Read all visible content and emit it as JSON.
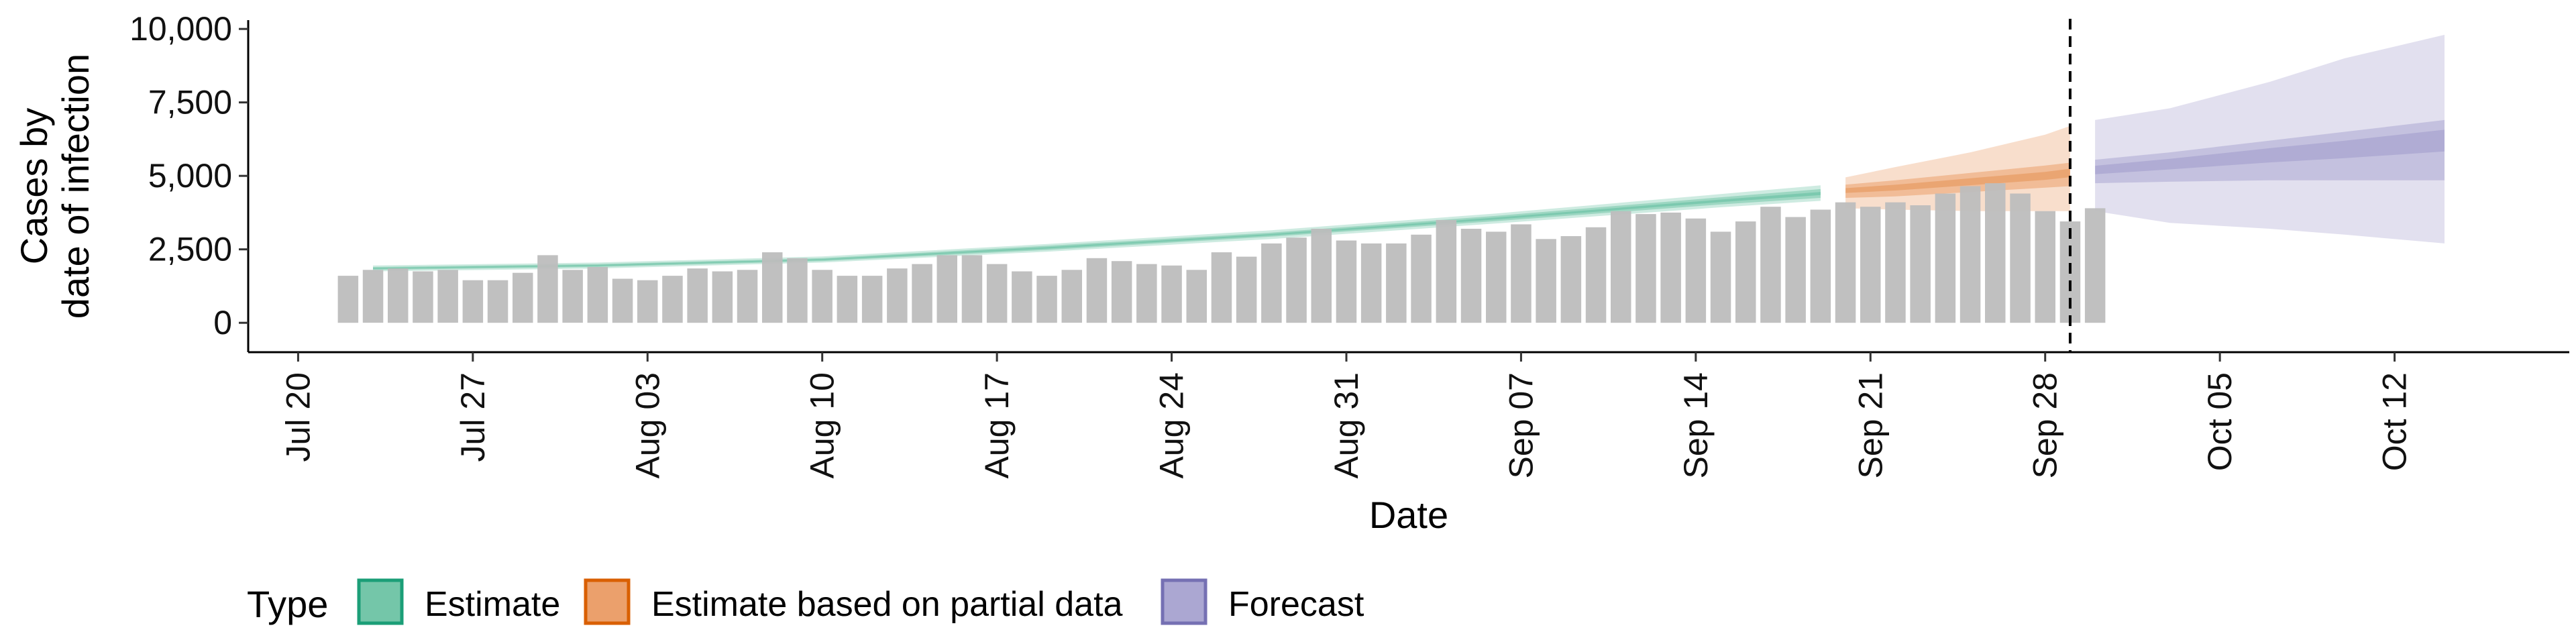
{
  "chart_data": {
    "type": "area",
    "xlabel": "Date",
    "ylabel": [
      "Cases by",
      "date of infection"
    ],
    "x_range": [
      "2020-07-18",
      "2020-10-19"
    ],
    "ylim": [
      -1000,
      10300
    ],
    "y_ticks": [
      {
        "value": 0,
        "label": "0"
      },
      {
        "value": 2500,
        "label": "2,500"
      },
      {
        "value": 5000,
        "label": "5,000"
      },
      {
        "value": 7500,
        "label": "7,500"
      },
      {
        "value": 10000,
        "label": "10,000"
      }
    ],
    "x_ticks": [
      {
        "date": "2020-07-20",
        "label": "Jul 20"
      },
      {
        "date": "2020-07-27",
        "label": "Jul 27"
      },
      {
        "date": "2020-08-03",
        "label": "Aug 03"
      },
      {
        "date": "2020-08-10",
        "label": "Aug 10"
      },
      {
        "date": "2020-08-17",
        "label": "Aug 17"
      },
      {
        "date": "2020-08-24",
        "label": "Aug 24"
      },
      {
        "date": "2020-08-31",
        "label": "Aug 31"
      },
      {
        "date": "2020-09-07",
        "label": "Sep 07"
      },
      {
        "date": "2020-09-14",
        "label": "Sep 14"
      },
      {
        "date": "2020-09-21",
        "label": "Sep 21"
      },
      {
        "date": "2020-09-28",
        "label": "Sep 28"
      },
      {
        "date": "2020-10-05",
        "label": "Oct 05"
      },
      {
        "date": "2020-10-12",
        "label": "Oct 12"
      }
    ],
    "vline_date": "2020-09-29",
    "bars": {
      "start_date": "2020-07-22",
      "color": "#bdbdbd",
      "values": [
        1600,
        1800,
        1850,
        1750,
        1800,
        1450,
        1450,
        1700,
        2300,
        1800,
        1900,
        1500,
        1450,
        1600,
        1850,
        1750,
        1800,
        2400,
        2200,
        1800,
        1600,
        1600,
        1850,
        2000,
        2300,
        2300,
        2000,
        1750,
        1600,
        1800,
        2200,
        2100,
        2000,
        1950,
        1800,
        2400,
        2250,
        2700,
        2900,
        3200,
        2800,
        2700,
        2700,
        3000,
        3500,
        3200,
        3100,
        3350,
        2850,
        2950,
        3250,
        3800,
        3700,
        3750,
        3550,
        3100,
        3450,
        3950,
        3600,
        3850,
        4100,
        3950,
        4100,
        4000,
        4400,
        4650,
        4750,
        4400,
        3800,
        3450,
        3900
      ]
    },
    "series": [
      {
        "name": "Estimate",
        "color": "#1b9e77",
        "fill": "#74c6a9",
        "dates": [
          "2020-07-23",
          "2020-08-01",
          "2020-08-10",
          "2020-08-19",
          "2020-08-28",
          "2020-09-06",
          "2020-09-15",
          "2020-09-19"
        ],
        "median": [
          1850,
          1950,
          2150,
          2550,
          3000,
          3550,
          4150,
          4400
        ],
        "inner_low": [
          1800,
          1900,
          2100,
          2480,
          2930,
          3460,
          4030,
          4250
        ],
        "inner_high": [
          1900,
          2000,
          2200,
          2620,
          3070,
          3640,
          4270,
          4550
        ],
        "outer_low": [
          1750,
          1850,
          2050,
          2420,
          2850,
          3380,
          3930,
          4150
        ],
        "outer_high": [
          1950,
          2050,
          2260,
          2680,
          3150,
          3720,
          4380,
          4680
        ]
      },
      {
        "name": "Estimate based on partial data",
        "color": "#d95f02",
        "fill": "#eba06c",
        "dates": [
          "2020-09-20",
          "2020-09-22",
          "2020-09-25",
          "2020-09-28",
          "2020-09-29"
        ],
        "median": [
          4500,
          4600,
          4800,
          5000,
          5100
        ],
        "inner_low": [
          4250,
          4300,
          4450,
          4600,
          4650
        ],
        "inner_high": [
          4700,
          4850,
          5100,
          5350,
          5450
        ],
        "outer_low": [
          3900,
          3850,
          3800,
          3800,
          3800
        ],
        "outer_high": [
          4950,
          5300,
          5800,
          6400,
          6700
        ]
      },
      {
        "name": "Forecast",
        "color": "#7570b3",
        "fill": "#aba7d2",
        "dates": [
          "2020-09-30",
          "2020-10-03",
          "2020-10-07",
          "2020-10-10",
          "2020-10-14"
        ],
        "median": [
          5200,
          5400,
          5700,
          5900,
          6200
        ],
        "inner_low": [
          4750,
          4800,
          4850,
          4850,
          4850
        ],
        "inner_high": [
          5550,
          5800,
          6200,
          6500,
          6900
        ],
        "outer_low": [
          3800,
          3400,
          3200,
          3000,
          2700
        ],
        "outer_high": [
          6900,
          7300,
          8200,
          9000,
          9800
        ]
      }
    ],
    "legend": {
      "title": "Type",
      "position": "bottom",
      "items": [
        "Estimate",
        "Estimate based on partial data",
        "Forecast"
      ]
    }
  }
}
